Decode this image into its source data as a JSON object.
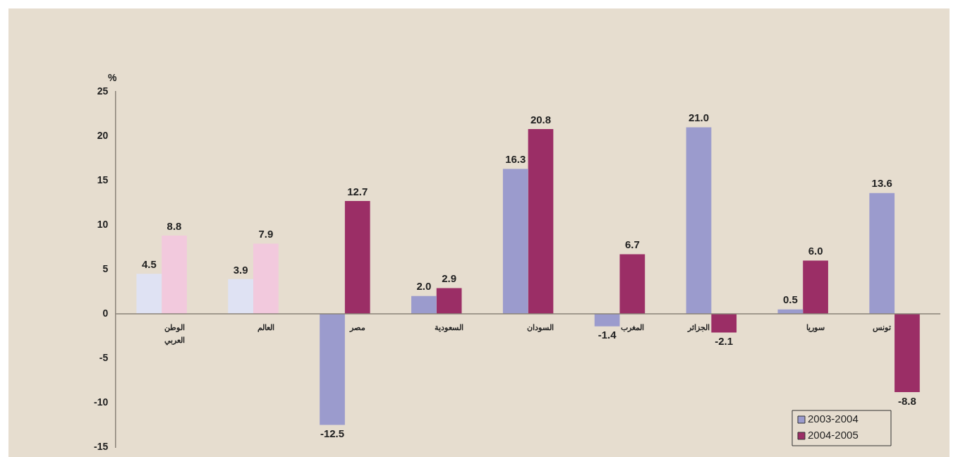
{
  "chart_data": {
    "type": "bar",
    "ylabel": "%",
    "categories": [
      "الوطن\nالعربي",
      "العالم",
      "مصر",
      "السعودية",
      "السودان",
      "المغرب",
      "الجزائر",
      "سوريا",
      "تونس"
    ],
    "series": [
      {
        "name": "2003-2004",
        "color": "#9b9bcd",
        "colors": [
          "#dfe2f3",
          "#dfe2f3",
          "#9b9bcd",
          "#9b9bcd",
          "#9b9bcd",
          "#9b9bcd",
          "#9b9bcd",
          "#9b9bcd",
          "#9b9bcd"
        ],
        "values": [
          4.5,
          3.9,
          -12.5,
          2.0,
          16.3,
          -1.4,
          21.0,
          0.5,
          13.6
        ],
        "value_labels": [
          "4.5",
          "3.9",
          "-12.5",
          "2.0",
          "16.3",
          "-1.4",
          "21.0",
          "0.5",
          "13.6"
        ]
      },
      {
        "name": "2004-2005",
        "color": "#9b2e66",
        "colors": [
          "#f2c9dd",
          "#f2c9dd",
          "#9b2e66",
          "#9b2e66",
          "#9b2e66",
          "#9b2e66",
          "#9b2e66",
          "#9b2e66",
          "#9b2e66"
        ],
        "values": [
          8.8,
          7.9,
          12.7,
          2.9,
          20.8,
          6.7,
          -2.1,
          6.0,
          -8.8
        ],
        "value_labels": [
          "8.8",
          "7.9",
          "12.7",
          "2.9",
          "20.8",
          "6.7",
          "-2.1",
          "6.0",
          "-8.8"
        ]
      }
    ],
    "ylim": [
      -15,
      25
    ],
    "yticks": [
      -15,
      -10,
      -5,
      0,
      5,
      10,
      15,
      20,
      25
    ],
    "grid": false,
    "legend": "bottom right"
  }
}
